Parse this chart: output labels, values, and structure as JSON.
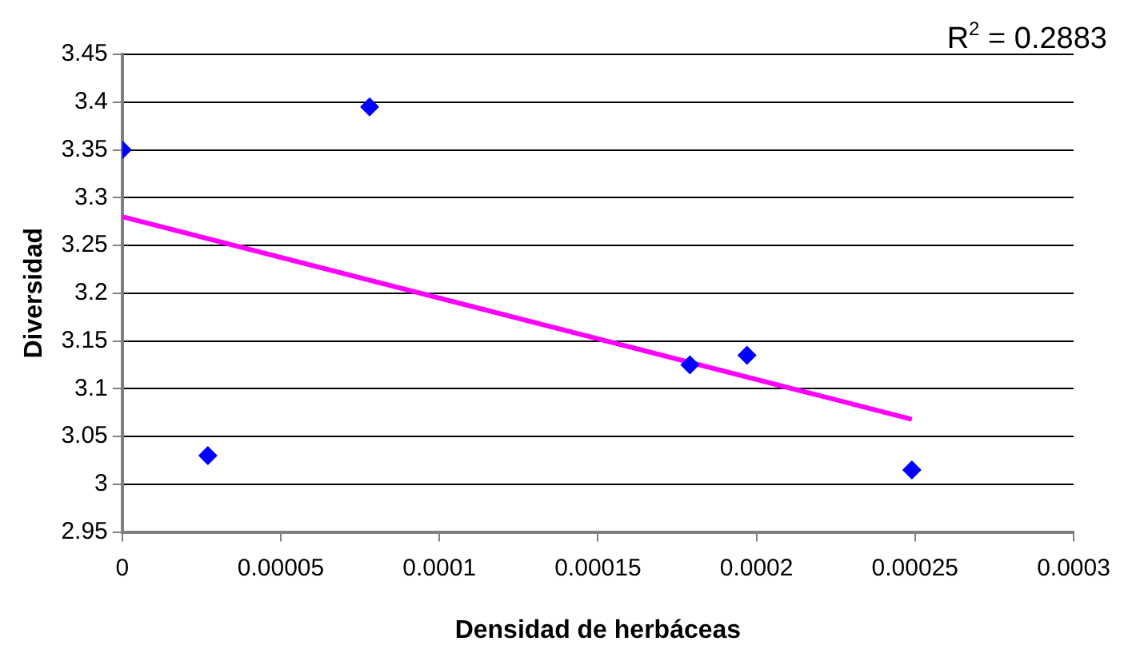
{
  "chart_data": {
    "type": "scatter",
    "xlabel": "Densidad de herbáceas",
    "ylabel": "Diversidad",
    "annotations": [
      "R$^{2}$ = 0.2883"
    ],
    "series": [
      {
        "color": "#0000ff",
        "x": [
          0,
          2.7e-05,
          7.8e-05,
          0.000179,
          0.000197,
          0.000249
        ],
        "values": [
          3.35,
          3.03,
          3.395,
          3.125,
          3.135,
          3.015
        ],
        "marker": "diamond"
      },
      {
        "type": "line",
        "color": "#ff00ff",
        "x": [
          0,
          0.000249
        ],
        "values": [
          3.28,
          3.068
        ],
        "marker": "none",
        "line_style": "solid"
      }
    ],
    "xlim": [
      0,
      0.0003
    ],
    "xticks": [
      0,
      {
        "value": 5e-05,
        "label": "0.00005"
      },
      0.0001,
      0.00015,
      0.0002,
      0.00025,
      0.0003
    ],
    "ylim": [
      2.95,
      3.45
    ],
    "yticks": [
      2.95,
      3,
      3.05,
      3.1,
      3.15,
      3.2,
      3.25,
      3.3,
      3.35,
      3.4,
      3.45
    ],
    "grid": "y",
    "legend": false
  }
}
